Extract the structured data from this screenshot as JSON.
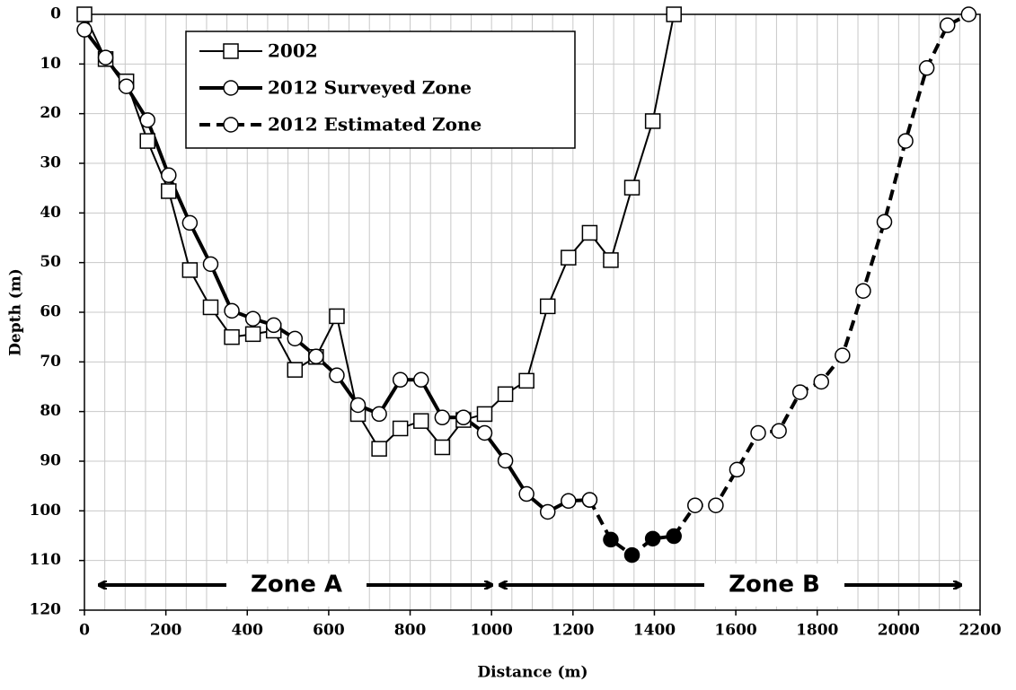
{
  "chart_data": {
    "type": "line",
    "xlabel": "Distance (m)",
    "ylabel": "Depth (m)",
    "x": [
      0,
      52,
      103,
      155,
      207,
      259,
      310,
      362,
      414,
      465,
      517,
      569,
      620,
      672,
      724,
      776,
      827,
      879,
      931,
      983,
      1034,
      1086,
      1138,
      1189,
      1241,
      1293,
      1345,
      1396,
      1448,
      1500,
      1551,
      1603,
      1655,
      1706,
      1758,
      1810,
      1862,
      1913,
      1965,
      2017,
      2069,
      2120,
      2172
    ],
    "series": [
      {
        "name": "2002",
        "color": "#000000",
        "marker": "square",
        "dash": false,
        "width": 2,
        "values": [
          0,
          9,
          13.5,
          25.5,
          35.6,
          51.5,
          59,
          65,
          64.4,
          63.7,
          71.6,
          69,
          60.8,
          80.5,
          87.5,
          83.4,
          81.9,
          87.2,
          81.7,
          80.5,
          76.5,
          73.8,
          58.8,
          49,
          44,
          49.5,
          34.9,
          21.5,
          0,
          null,
          null,
          null,
          null,
          null,
          null,
          null,
          null,
          null,
          null,
          null,
          null,
          null,
          null
        ]
      },
      {
        "name": "2012 Surveyed Zone",
        "color": "#000000",
        "marker": "circle",
        "dash": false,
        "width": 4,
        "values": [
          3.1,
          8.7,
          14.5,
          21.3,
          32.4,
          42,
          50.3,
          59.7,
          61.3,
          62.6,
          65.3,
          68.9,
          72.7,
          78.7,
          80.5,
          73.6,
          73.6,
          81.2,
          81.2,
          84.3,
          89.9,
          96.6,
          100.2,
          98,
          97.8,
          null,
          null,
          null,
          null,
          null,
          null,
          null,
          null,
          null,
          null,
          null,
          null,
          null,
          null,
          null,
          null,
          null,
          null
        ]
      },
      {
        "name": "2012 Estimated Zone",
        "color": "#000000",
        "marker": "circle",
        "dash": true,
        "width": 4,
        "values": [
          null,
          null,
          null,
          null,
          null,
          null,
          null,
          null,
          null,
          null,
          null,
          null,
          null,
          null,
          null,
          null,
          null,
          null,
          null,
          null,
          null,
          null,
          null,
          null,
          97.8,
          105.8,
          108.9,
          105.6,
          105.1,
          98.9,
          98.9,
          91.7,
          84.3,
          83.9,
          76.1,
          74,
          68.7,
          55.7,
          41.8,
          25.5,
          10.8,
          2.2,
          0
        ],
        "marker_colors": [
          null,
          null,
          null,
          null,
          null,
          null,
          null,
          null,
          null,
          null,
          null,
          null,
          null,
          null,
          null,
          null,
          null,
          null,
          null,
          null,
          null,
          null,
          null,
          null,
          "#ffffff",
          "#000000",
          "#000000",
          "#000000",
          "#000000",
          "#ffffff",
          "#ffffff",
          "#ffffff",
          "#ffffff",
          "#ffffff",
          "#ffffff",
          "#ffffff",
          "#ffffff",
          "#ffffff",
          "#ffffff",
          "#ffffff",
          "#ffffff",
          "#ffffff",
          "#ffffff"
        ]
      }
    ],
    "annotations": [
      {
        "text": "Zone A"
      },
      {
        "text": "Zone B"
      }
    ],
    "xlim": [
      0,
      2200
    ],
    "xticks": [
      0,
      200,
      400,
      600,
      800,
      1000,
      1200,
      1400,
      1600,
      1800,
      2000,
      2200
    ],
    "xminor": 50,
    "ylim": [
      0,
      120
    ],
    "yinverted": true,
    "yticks": [
      0,
      10,
      20,
      30,
      40,
      50,
      60,
      70,
      80,
      90,
      100,
      110,
      120
    ],
    "grid": true
  }
}
